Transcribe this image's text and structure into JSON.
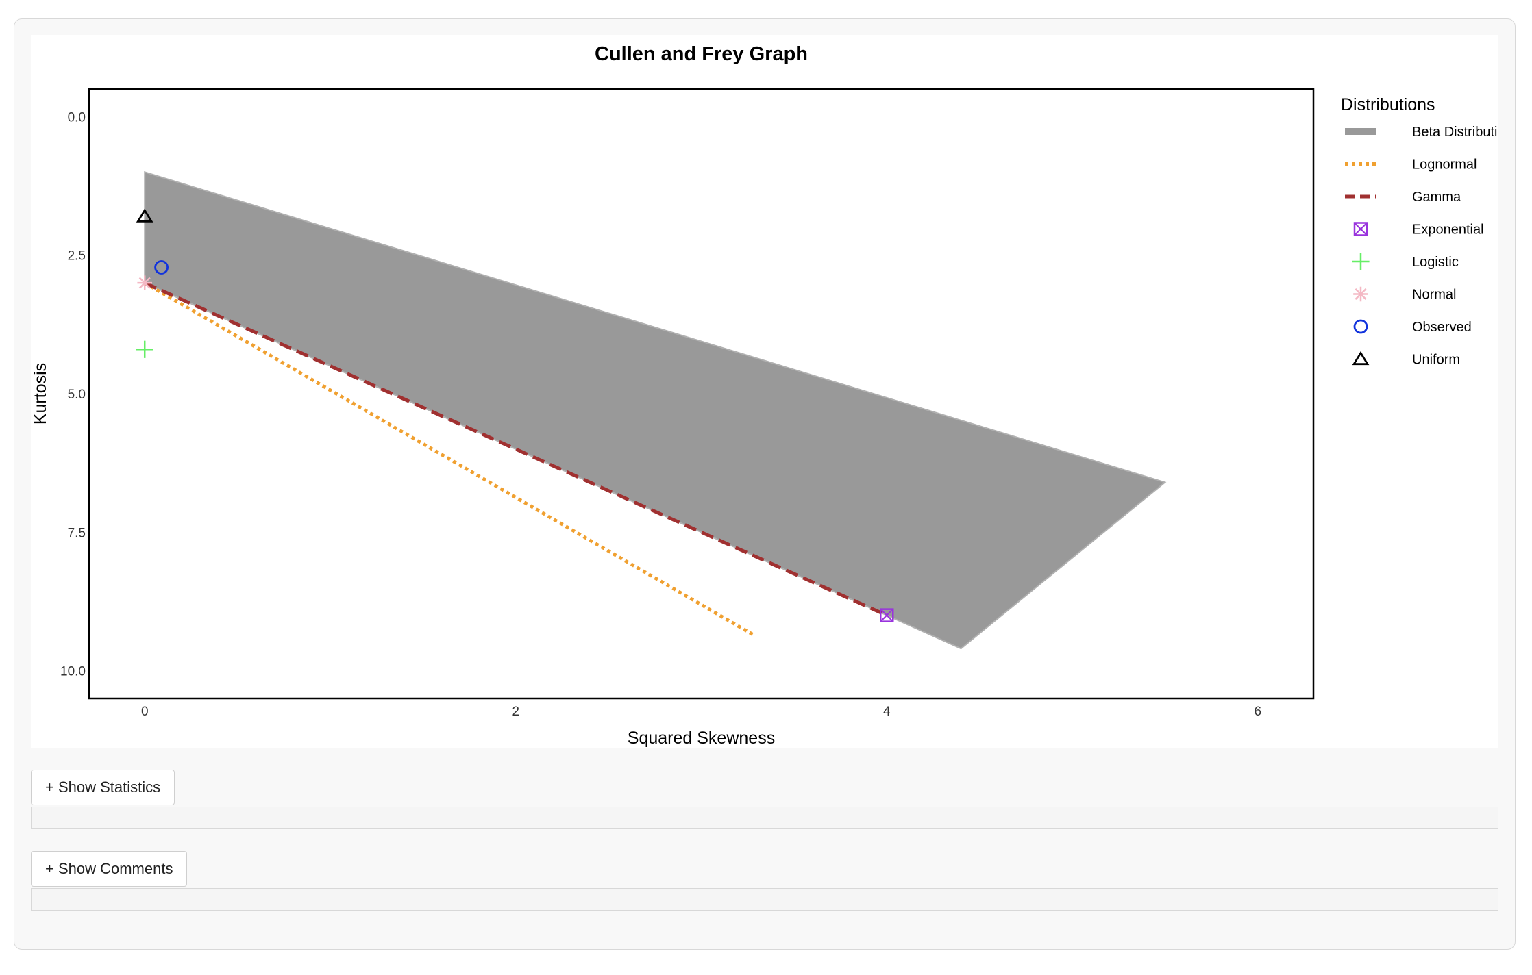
{
  "buttons": {
    "show_statistics": "+ Show Statistics",
    "show_comments": "+ Show Comments"
  },
  "chart_data": {
    "type": "scatter",
    "title": "Cullen and Frey Graph",
    "xlabel": "Squared Skewness",
    "ylabel": "Kurtosis",
    "xlim": [
      -0.3,
      6.3
    ],
    "ylim": [
      10.5,
      -0.5
    ],
    "y_axis_reversed": true,
    "x_ticks": [
      0,
      2,
      4,
      6
    ],
    "x_tick_labels": [
      "0",
      "2",
      "4",
      "6"
    ],
    "y_ticks": [
      0,
      2.5,
      5,
      7.5,
      10
    ],
    "y_tick_labels": [
      "0.0",
      "2.5",
      "5.0",
      "7.5",
      "10.0"
    ],
    "grid": false,
    "legend_title": "Distributions",
    "legend_position": "right",
    "series": [
      {
        "name": "Beta Distribution",
        "kind": "area",
        "color": "#999999",
        "polygon": [
          [
            0,
            1.0
          ],
          [
            5.5,
            6.6
          ],
          [
            4.4,
            9.6
          ],
          [
            0,
            3.0
          ]
        ]
      },
      {
        "name": "Lognormal",
        "kind": "line",
        "style": "dotted",
        "color": "#f0a030",
        "x": [
          0,
          3.28
        ],
        "y": [
          3.0,
          9.35
        ]
      },
      {
        "name": "Gamma",
        "kind": "line",
        "style": "dashed",
        "color": "#a03030",
        "x": [
          0,
          4.0
        ],
        "y": [
          3.0,
          9.0
        ]
      },
      {
        "name": "Exponential",
        "kind": "point",
        "marker": "square-x",
        "color": "#9933dd",
        "x": [
          4.0
        ],
        "y": [
          9.0
        ]
      },
      {
        "name": "Logistic",
        "kind": "point",
        "marker": "plus",
        "color": "#66ee66",
        "x": [
          0
        ],
        "y": [
          4.2
        ]
      },
      {
        "name": "Normal",
        "kind": "point",
        "marker": "asterisk",
        "color": "#f4b8c4",
        "x": [
          0
        ],
        "y": [
          3.0
        ]
      },
      {
        "name": "Observed",
        "kind": "point",
        "marker": "circle",
        "color": "#1133dd",
        "x": [
          0.09
        ],
        "y": [
          2.72
        ]
      },
      {
        "name": "Uniform",
        "kind": "point",
        "marker": "triangle",
        "color": "#000000",
        "x": [
          0
        ],
        "y": [
          1.8
        ]
      }
    ]
  }
}
